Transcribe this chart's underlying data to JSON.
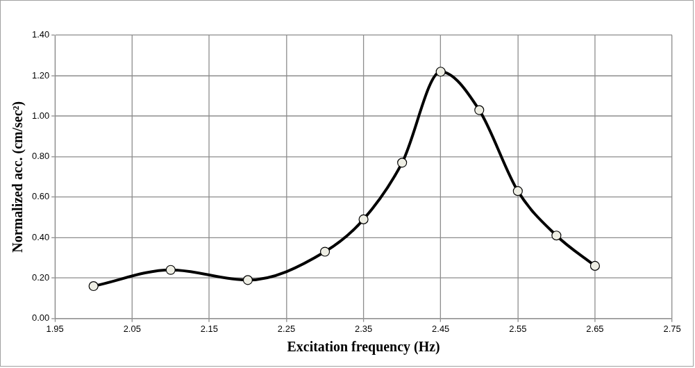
{
  "chart_data": {
    "type": "line",
    "xlabel": "Excitation frequency (Hz)",
    "ylabel": "Normalized acc. (cm/sec²)",
    "x": [
      2.0,
      2.1,
      2.2,
      2.3,
      2.35,
      2.4,
      2.45,
      2.5,
      2.55,
      2.6,
      2.65
    ],
    "series": [
      {
        "color": "#000000",
        "values": [
          0.16,
          0.24,
          0.19,
          0.33,
          0.49,
          0.77,
          1.22,
          1.03,
          0.63,
          0.41,
          0.26
        ]
      }
    ],
    "xlim": [
      1.95,
      2.75
    ],
    "xticks": [
      1.95,
      2.05,
      2.15,
      2.25,
      2.35,
      2.45,
      2.55,
      2.65,
      2.75
    ],
    "ylim": [
      0,
      1.4
    ],
    "yticks": [
      {
        "value": 0,
        "label": "0.00"
      },
      {
        "value": 0.2,
        "label": "0.20"
      },
      {
        "value": 0.4,
        "label": "0.40"
      },
      {
        "value": 0.6,
        "label": "0.60"
      },
      {
        "value": 0.8,
        "label": "0.80"
      },
      {
        "value": 1.0,
        "label": "1.00"
      },
      {
        "value": 1.2,
        "label": "1.20"
      },
      {
        "value": 1.4,
        "label": "1.40"
      }
    ],
    "grid": true,
    "legend": false,
    "marker": "circle",
    "line_style": "solid"
  }
}
